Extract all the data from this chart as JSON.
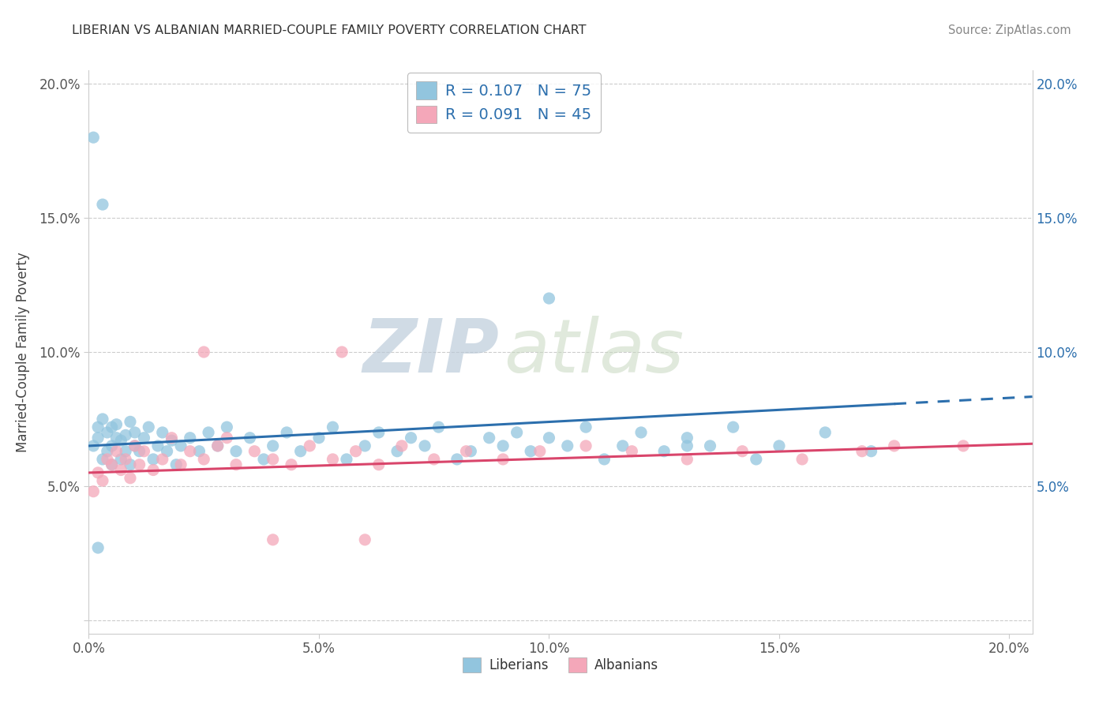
{
  "title": "LIBERIAN VS ALBANIAN MARRIED-COUPLE FAMILY POVERTY CORRELATION CHART",
  "source_text": "Source: ZipAtlas.com",
  "ylabel": "Married-Couple Family Poverty",
  "xlim": [
    0.0,
    0.205
  ],
  "ylim": [
    -0.005,
    0.205
  ],
  "x_ticks": [
    0.0,
    0.05,
    0.1,
    0.15,
    0.2
  ],
  "y_ticks": [
    0.0,
    0.05,
    0.1,
    0.15,
    0.2
  ],
  "x_tick_labels": [
    "0.0%",
    "5.0%",
    "10.0%",
    "15.0%",
    "20.0%"
  ],
  "y_tick_labels": [
    "",
    "5.0%",
    "10.0%",
    "15.0%",
    "20.0%"
  ],
  "right_y_tick_labels": [
    "",
    "5.0%",
    "10.0%",
    "15.0%",
    "20.0%"
  ],
  "liberian_color": "#92c5de",
  "albanian_color": "#f4a7b9",
  "liberian_line_color": "#2c6fad",
  "albanian_line_color": "#d9456b",
  "R_liberian": 0.107,
  "N_liberian": 75,
  "R_albanian": 0.091,
  "N_albanian": 45,
  "background_color": "#ffffff",
  "grid_color": "#cccccc",
  "watermark_zip": "ZIP",
  "watermark_atlas": "atlas",
  "lib_x": [
    0.001,
    0.002,
    0.002,
    0.003,
    0.003,
    0.004,
    0.004,
    0.005,
    0.005,
    0.005,
    0.006,
    0.006,
    0.007,
    0.007,
    0.008,
    0.008,
    0.009,
    0.009,
    0.01,
    0.01,
    0.011,
    0.012,
    0.013,
    0.014,
    0.015,
    0.016,
    0.017,
    0.018,
    0.019,
    0.02,
    0.022,
    0.024,
    0.026,
    0.028,
    0.03,
    0.032,
    0.035,
    0.038,
    0.04,
    0.043,
    0.046,
    0.05,
    0.053,
    0.056,
    0.06,
    0.063,
    0.067,
    0.07,
    0.073,
    0.076,
    0.08,
    0.083,
    0.087,
    0.09,
    0.093,
    0.096,
    0.1,
    0.104,
    0.108,
    0.112,
    0.116,
    0.12,
    0.125,
    0.13,
    0.135,
    0.14,
    0.145,
    0.15,
    0.16,
    0.17,
    0.001,
    0.003,
    0.002,
    0.13,
    0.1
  ],
  "lib_y": [
    0.065,
    0.068,
    0.072,
    0.06,
    0.075,
    0.063,
    0.07,
    0.058,
    0.065,
    0.072,
    0.068,
    0.073,
    0.06,
    0.067,
    0.063,
    0.069,
    0.058,
    0.074,
    0.065,
    0.07,
    0.063,
    0.068,
    0.072,
    0.06,
    0.065,
    0.07,
    0.063,
    0.067,
    0.058,
    0.065,
    0.068,
    0.063,
    0.07,
    0.065,
    0.072,
    0.063,
    0.068,
    0.06,
    0.065,
    0.07,
    0.063,
    0.068,
    0.072,
    0.06,
    0.065,
    0.07,
    0.063,
    0.068,
    0.065,
    0.072,
    0.06,
    0.063,
    0.068,
    0.065,
    0.07,
    0.063,
    0.068,
    0.065,
    0.072,
    0.06,
    0.065,
    0.07,
    0.063,
    0.068,
    0.065,
    0.072,
    0.06,
    0.065,
    0.07,
    0.063,
    0.18,
    0.155,
    0.027,
    0.065,
    0.12
  ],
  "alb_x": [
    0.001,
    0.002,
    0.003,
    0.004,
    0.005,
    0.006,
    0.007,
    0.008,
    0.009,
    0.01,
    0.011,
    0.012,
    0.014,
    0.016,
    0.018,
    0.02,
    0.022,
    0.025,
    0.028,
    0.032,
    0.036,
    0.04,
    0.044,
    0.048,
    0.053,
    0.058,
    0.063,
    0.068,
    0.075,
    0.082,
    0.09,
    0.098,
    0.108,
    0.118,
    0.13,
    0.142,
    0.155,
    0.168,
    0.175,
    0.055,
    0.03,
    0.025,
    0.19,
    0.06,
    0.04
  ],
  "alb_y": [
    0.048,
    0.055,
    0.052,
    0.06,
    0.058,
    0.063,
    0.056,
    0.06,
    0.053,
    0.065,
    0.058,
    0.063,
    0.056,
    0.06,
    0.068,
    0.058,
    0.063,
    0.06,
    0.065,
    0.058,
    0.063,
    0.06,
    0.058,
    0.065,
    0.06,
    0.063,
    0.058,
    0.065,
    0.06,
    0.063,
    0.06,
    0.063,
    0.065,
    0.063,
    0.06,
    0.063,
    0.06,
    0.063,
    0.065,
    0.1,
    0.068,
    0.1,
    0.065,
    0.03,
    0.03
  ]
}
